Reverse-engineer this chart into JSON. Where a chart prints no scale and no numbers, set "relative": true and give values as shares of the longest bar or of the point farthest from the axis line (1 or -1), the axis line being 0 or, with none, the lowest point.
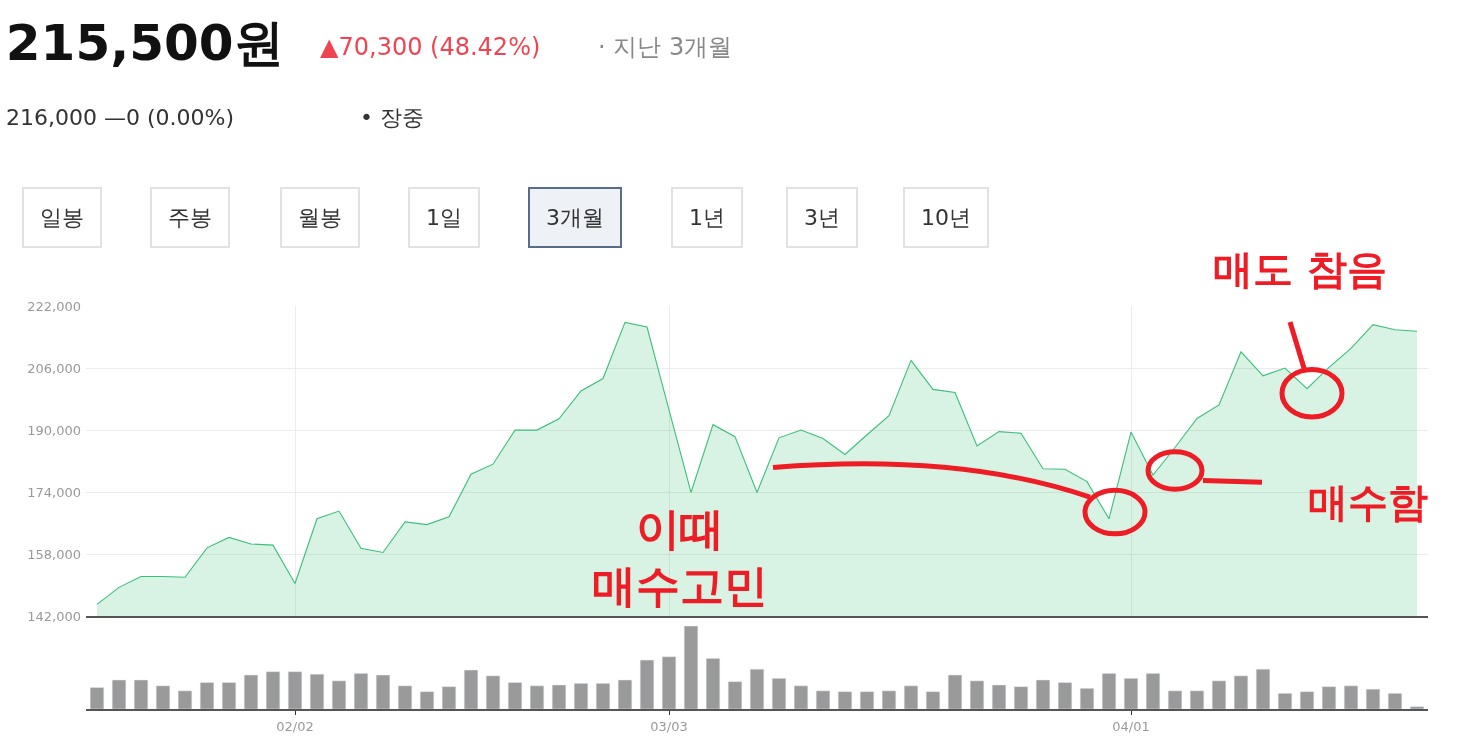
{
  "chart_data": [
    {
      "type": "area",
      "title": "215,500원",
      "annotations": [
        "▲70,300 (48.42%)",
        "· 지난 3개월",
        "216,000 —0 (0.00%)",
        "• 장중",
        "일봉",
        "주봉",
        "월봉",
        "1일",
        "3개월",
        "1년",
        "3년",
        "10년",
        "이때\n매수고민",
        "매수함",
        "매도 참음"
      ],
      "categories": [
        null,
        null,
        null,
        null,
        null,
        null,
        null,
        null,
        null,
        null,
        null,
        null,
        null,
        null,
        null,
        null,
        null,
        null,
        null,
        null,
        null,
        null,
        null,
        null,
        null,
        null,
        null,
        null,
        null,
        null,
        null,
        null,
        null,
        null,
        null,
        null,
        null,
        null,
        null,
        null,
        null,
        null,
        null,
        null,
        null,
        null,
        null,
        null,
        null,
        null,
        null,
        null,
        null,
        null,
        null,
        null,
        null,
        null,
        null,
        null,
        null
      ],
      "series": [
        {
          "color": "#3cbf7a",
          "values": [
            145000,
            149400,
            152200,
            152200,
            152000,
            159600,
            162300,
            160600,
            160300,
            150400,
            167100,
            169100,
            159500,
            158400,
            166300,
            165600,
            167600,
            178600,
            181200,
            190000,
            190000,
            192900,
            200100,
            203300,
            217800,
            216600,
            195200,
            173900,
            191400,
            188300,
            173900,
            188000,
            190000,
            187800,
            183700,
            188800,
            193700,
            208000,
            200500,
            199700,
            185900,
            189600,
            189200,
            180000,
            179900,
            176700,
            167100,
            189500,
            178400,
            185500,
            193000,
            196500,
            210200,
            204000,
            206000,
            200700,
            206200,
            211100,
            217200,
            215900,
            215500
          ]
        }
      ],
      "ylim": [
        142000,
        222000
      ],
      "yticks": [
        {
          "value": 142000,
          "label": "142,000"
        },
        {
          "value": 158000,
          "label": "158,000"
        },
        {
          "value": 174000,
          "label": "174,000"
        },
        {
          "value": 190000,
          "label": "190,000"
        },
        {
          "value": 206000,
          "label": "206,000"
        },
        {
          "value": 222000,
          "label": "222,000"
        }
      ],
      "grid": true,
      "tick_labels": "y"
    },
    {
      "type": "bar",
      "relative": true,
      "tick_labels": "x",
      "categories": [
        null,
        null,
        null,
        null,
        null,
        null,
        null,
        null,
        null,
        "02/02",
        null,
        null,
        null,
        null,
        null,
        null,
        null,
        null,
        null,
        null,
        null,
        null,
        null,
        null,
        null,
        null,
        "03/03",
        null,
        null,
        null,
        null,
        null,
        null,
        null,
        null,
        null,
        null,
        null,
        null,
        null,
        null,
        null,
        null,
        null,
        null,
        null,
        null,
        "04/01",
        null,
        null,
        null,
        null,
        null,
        null,
        null,
        null,
        null,
        null,
        null,
        null,
        null
      ],
      "series": [
        {
          "color": "#9a9a9a",
          "values": [
            0.26,
            0.35,
            0.35,
            0.28,
            0.22,
            0.32,
            0.32,
            0.41,
            0.45,
            0.45,
            0.42,
            0.34,
            0.43,
            0.41,
            0.28,
            0.21,
            0.27,
            0.47,
            0.4,
            0.32,
            0.28,
            0.29,
            0.31,
            0.31,
            0.35,
            0.59,
            0.63,
            1.0,
            0.61,
            0.33,
            0.48,
            0.37,
            0.28,
            0.22,
            0.21,
            0.21,
            0.22,
            0.28,
            0.21,
            0.41,
            0.34,
            0.29,
            0.27,
            0.35,
            0.32,
            0.25,
            0.43,
            0.37,
            0.43,
            0.22,
            0.22,
            0.34,
            0.4,
            0.48,
            0.19,
            0.21,
            0.27,
            0.28,
            0.24,
            0.19,
            0.03
          ]
        }
      ]
    }
  ]
}
